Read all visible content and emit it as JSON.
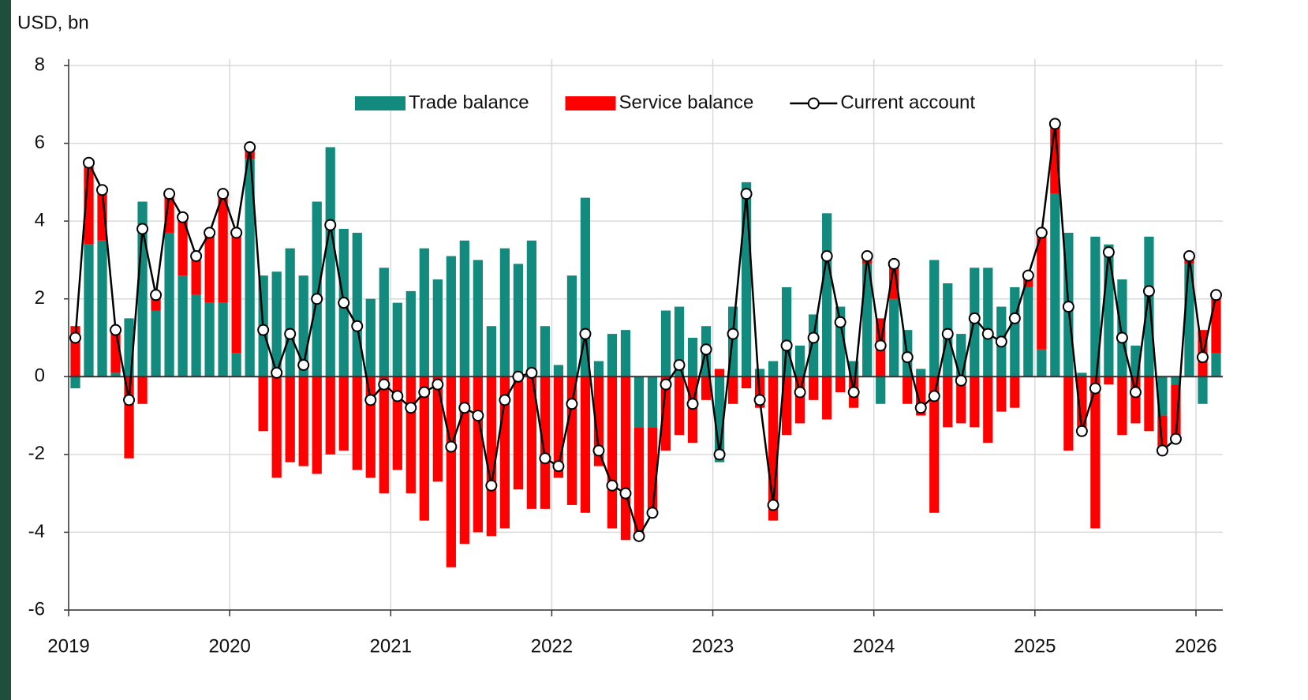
{
  "chart_data": {
    "type": "bar",
    "axis_title": "USD, bn",
    "categories": [
      "2019",
      null,
      null,
      null,
      null,
      null,
      null,
      null,
      null,
      null,
      null,
      null,
      "2020",
      null,
      null,
      null,
      null,
      null,
      null,
      null,
      null,
      null,
      null,
      null,
      "2021",
      null,
      null,
      null,
      null,
      null,
      null,
      null,
      null,
      null,
      null,
      null,
      "2022",
      null,
      null,
      null,
      null,
      null,
      null,
      null,
      null,
      null,
      null,
      null,
      "2023",
      null,
      null,
      null,
      null,
      null,
      null,
      null,
      null,
      null,
      null,
      null,
      "2024",
      null,
      null,
      null,
      null,
      null,
      null,
      null,
      null,
      null,
      null,
      null,
      "2025",
      null,
      null,
      null,
      null,
      null,
      null,
      null,
      null,
      null,
      null,
      null,
      "2026",
      null
    ],
    "series": [
      {
        "name": "Trade balance",
        "type": "bar",
        "color": "#138a7e",
        "values": [
          -0.3,
          3.4,
          3.5,
          0.1,
          1.5,
          4.5,
          1.7,
          3.7,
          2.6,
          2.1,
          1.9,
          1.9,
          0.6,
          5.6,
          2.6,
          2.7,
          3.3,
          2.6,
          4.5,
          5.9,
          3.8,
          3.7,
          2.0,
          2.8,
          1.9,
          2.2,
          3.3,
          2.5,
          3.1,
          3.5,
          3.0,
          1.3,
          3.3,
          2.9,
          3.5,
          1.3,
          0.3,
          2.6,
          4.6,
          0.4,
          1.1,
          1.2,
          -1.3,
          -1.3,
          1.7,
          1.8,
          1.0,
          1.3,
          -2.2,
          1.8,
          5.0,
          0.2,
          0.4,
          2.3,
          0.8,
          1.6,
          4.2,
          1.8,
          0.4,
          2.9,
          -0.7,
          2.0,
          1.2,
          0.2,
          3.0,
          2.4,
          1.1,
          2.8,
          2.8,
          1.8,
          2.3,
          2.3,
          0.7,
          4.7,
          3.7,
          0.1,
          3.6,
          3.4,
          2.5,
          0.8,
          3.6,
          -1.0,
          -0.2,
          2.9,
          -0.7,
          0.6
        ]
      },
      {
        "name": "Service balance",
        "type": "bar",
        "color": "#ff0000",
        "values": [
          1.3,
          2.0,
          1.3,
          1.1,
          -2.1,
          -0.7,
          0.4,
          1.0,
          1.5,
          1.0,
          1.8,
          2.8,
          3.1,
          0.3,
          -1.4,
          -2.6,
          -2.2,
          -2.3,
          -2.5,
          -2.0,
          -1.9,
          -2.4,
          -2.6,
          -3.0,
          -2.4,
          -3.0,
          -3.7,
          -2.7,
          -4.9,
          -4.3,
          -4.0,
          -4.1,
          -3.9,
          -2.9,
          -3.4,
          -3.4,
          -2.6,
          -3.3,
          -3.5,
          -2.3,
          -3.9,
          -4.2,
          -2.8,
          -2.2,
          -1.9,
          -1.5,
          -1.7,
          -0.6,
          0.2,
          -0.7,
          -0.3,
          -0.8,
          -3.7,
          -1.5,
          -1.2,
          -0.6,
          -1.1,
          -0.4,
          -0.8,
          0.2,
          1.5,
          0.9,
          -0.7,
          -1.0,
          -3.5,
          -1.3,
          -1.2,
          -1.3,
          -1.7,
          -0.9,
          -0.8,
          0.3,
          3.0,
          1.8,
          -1.9,
          -1.5,
          -3.9,
          -0.2,
          -1.5,
          -1.2,
          -1.4,
          -0.9,
          -1.4,
          0.2,
          1.2,
          1.5
        ]
      },
      {
        "name": "Current account",
        "type": "line",
        "color": "#000000",
        "values": [
          1.0,
          5.5,
          4.8,
          1.2,
          -0.6,
          3.8,
          2.1,
          4.7,
          4.1,
          3.1,
          3.7,
          4.7,
          3.7,
          5.9,
          1.2,
          0.1,
          1.1,
          0.3,
          2.0,
          3.9,
          1.9,
          1.3,
          -0.6,
          -0.2,
          -0.5,
          -0.8,
          -0.4,
          -0.2,
          -1.8,
          -0.8,
          -1.0,
          -2.8,
          -0.6,
          0.0,
          0.1,
          -2.1,
          -2.3,
          -0.7,
          1.1,
          -1.9,
          -2.8,
          -3.0,
          -4.1,
          -3.5,
          -0.2,
          0.3,
          -0.7,
          0.7,
          -2.0,
          1.1,
          4.7,
          -0.6,
          -3.3,
          0.8,
          -0.4,
          1.0,
          3.1,
          1.4,
          -0.4,
          3.1,
          0.8,
          2.9,
          0.5,
          -0.8,
          -0.5,
          1.1,
          -0.1,
          1.5,
          1.1,
          0.9,
          1.5,
          2.6,
          3.7,
          6.5,
          1.8,
          -1.4,
          -0.3,
          3.2,
          1.0,
          -0.4,
          2.2,
          -1.9,
          -1.6,
          3.1,
          0.5,
          2.1
        ]
      }
    ],
    "ylim": [
      -6,
      8
    ],
    "yticks": [
      -6,
      -4,
      -2,
      0,
      2,
      4,
      6,
      8
    ],
    "grid": true,
    "legend": "top"
  }
}
